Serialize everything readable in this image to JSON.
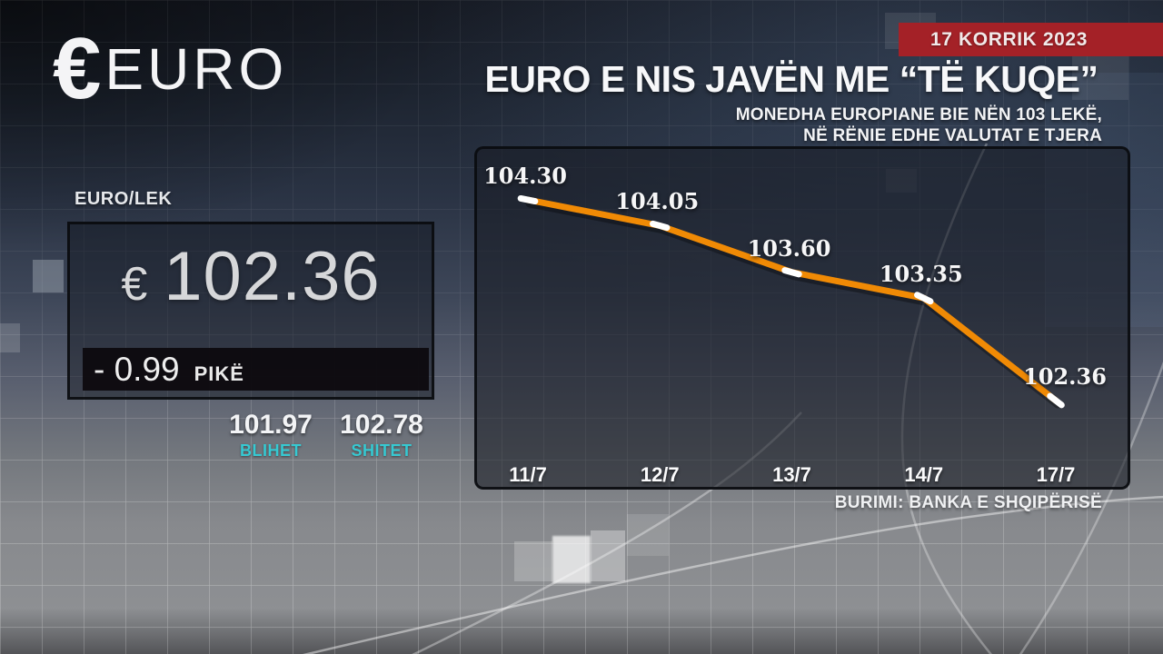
{
  "date_badge": "17 KORRIK 2023",
  "logo": {
    "symbol": "€",
    "text": "EURO"
  },
  "headline": "EURO E NIS JAVËN ME “TË KUQE”",
  "subheadline_line1": "MONEDHA EUROPIANE BIE NËN 103 LEKË,",
  "subheadline_line2": "NË RËNIE EDHE VALUTAT E TJERA",
  "rate_panel": {
    "pair_label": "EURO/LEK",
    "currency_symbol": "€",
    "rate": "102.36",
    "change": "- 0.99",
    "change_unit": "PIKË",
    "buy_value": "101.97",
    "buy_label": "BLIHET",
    "sell_value": "102.78",
    "sell_label": "SHITET"
  },
  "source": "BURIMI: BANKA E SHQIPËRISË",
  "colors": {
    "accent_orange": "#F08A05",
    "accent_cyan": "#36C9D2",
    "badge_red": "#A42127"
  },
  "chart_data": {
    "type": "line",
    "title": "EURO/LEK daily exchange rate",
    "categories": [
      "11/7",
      "12/7",
      "13/7",
      "14/7",
      "17/7"
    ],
    "values": [
      104.3,
      104.05,
      103.6,
      103.35,
      102.36
    ],
    "point_labels": [
      "104.30",
      "104.05",
      "103.60",
      "103.35",
      "102.36"
    ],
    "ylim": [
      102.0,
      104.8
    ],
    "grid": false,
    "legend": "none",
    "line_color": "#F08A05",
    "marker_color": "#FFFFFF"
  }
}
